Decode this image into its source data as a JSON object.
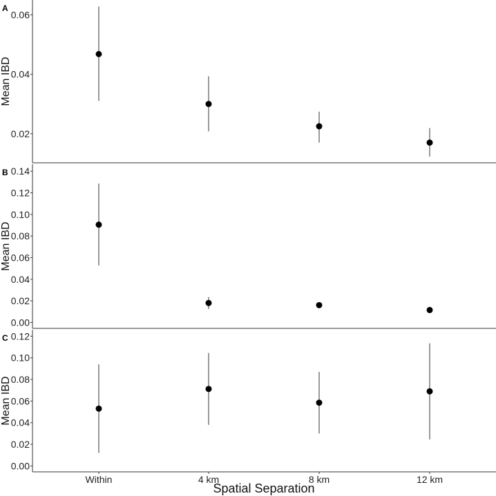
{
  "chart_data": {
    "type": "scatter",
    "xlabel": "Spatial Separation",
    "categories": [
      "Within",
      "4 km",
      "8 km",
      "12 km"
    ],
    "panels": [
      {
        "label": "A",
        "ylabel": "Mean IBD",
        "ylim": [
          0.0102,
          0.065
        ],
        "yticks": [
          "0.02",
          "0.04",
          "0.06"
        ],
        "ytick_values": [
          0.02,
          0.04,
          0.06
        ],
        "series": [
          {
            "values": [
              0.0468,
              0.03,
              0.0225,
              0.017
            ],
            "lower": [
              0.031,
              0.0208,
              0.017,
              0.0123
            ],
            "upper": [
              0.0628,
              0.0393,
              0.0274,
              0.0219
            ]
          }
        ]
      },
      {
        "label": "B",
        "ylabel": "Mean IBD",
        "ylim": [
          -0.0055,
          0.1465
        ],
        "yticks": [
          "0.00",
          "0.02",
          "0.04",
          "0.06",
          "0.08",
          "0.10",
          "0.12",
          "0.14"
        ],
        "ytick_values": [
          0.0,
          0.02,
          0.04,
          0.06,
          0.08,
          0.1,
          0.12,
          0.14
        ],
        "series": [
          {
            "values": [
              0.0905,
              0.018,
              0.016,
              0.0115
            ],
            "lower": [
              0.0528,
              0.0125,
              0.015,
              0.0105
            ],
            "upper": [
              0.1285,
              0.0235,
              0.017,
              0.0125
            ]
          }
        ]
      },
      {
        "label": "C",
        "ylabel": "Mean IBD",
        "ylim": [
          -0.0055,
          0.126
        ],
        "yticks": [
          "0.00",
          "0.02",
          "0.04",
          "0.06",
          "0.08",
          "0.10",
          "0.12"
        ],
        "ytick_values": [
          0.0,
          0.02,
          0.04,
          0.06,
          0.08,
          0.1,
          0.12
        ],
        "series": [
          {
            "values": [
              0.053,
              0.0712,
              0.0585,
              0.069
            ],
            "lower": [
              0.012,
              0.038,
              0.03,
              0.0245
            ],
            "upper": [
              0.094,
              0.1045,
              0.087,
              0.1135
            ]
          }
        ]
      }
    ],
    "grid": false,
    "colors": {
      "points": "#000000",
      "errorbars": "#333333",
      "axis": "#333333"
    }
  }
}
